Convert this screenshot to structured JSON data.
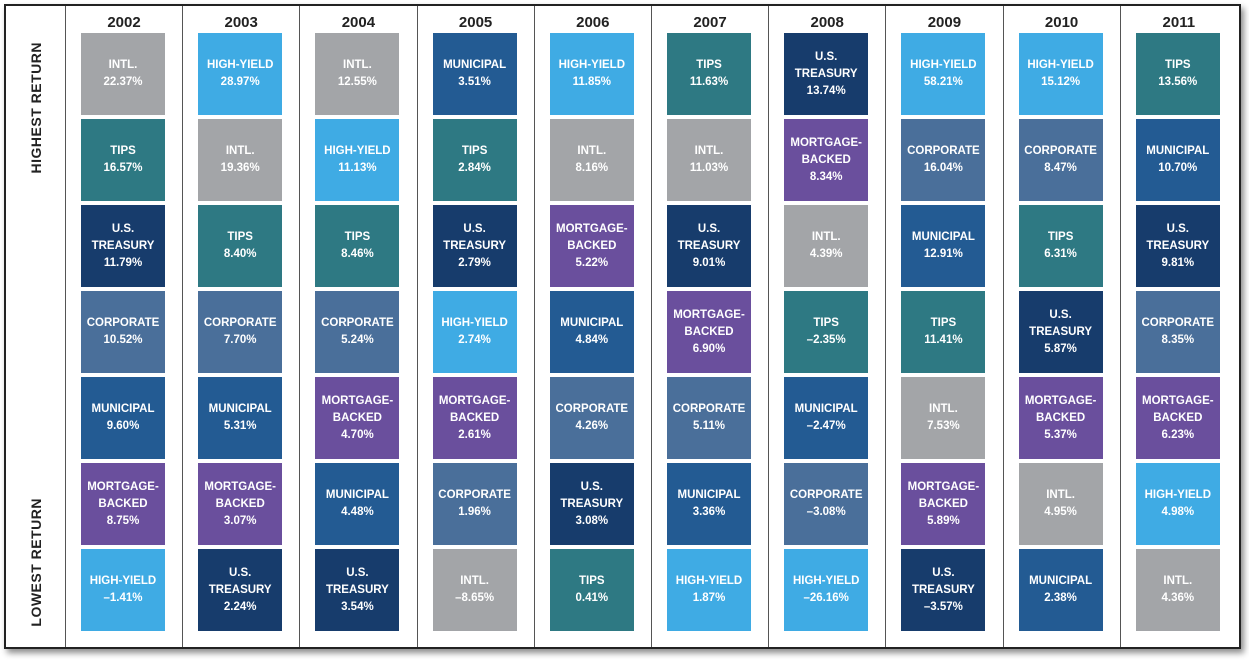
{
  "side_labels": {
    "top": "HIGHEST RETURN",
    "bottom": "LOWEST RETURN"
  },
  "palette": {
    "INTL.": "#a3a5a8",
    "HIGH-YIELD": "#3fabe4",
    "TIPS": "#2e7983",
    "U.S. TREASURY": "#173c6c",
    "CORPORATE": "#4a6f9a",
    "MUNICIPAL": "#235b93",
    "MORTGAGE-BACKED": "#6a4f9d"
  },
  "columns": [
    {
      "year": "2002",
      "cells": [
        {
          "label": "INTL.",
          "value": "22.37%"
        },
        {
          "label": "TIPS",
          "value": "16.57%"
        },
        {
          "label": "U.S. TREASURY",
          "value": "11.79%"
        },
        {
          "label": "CORPORATE",
          "value": "10.52%"
        },
        {
          "label": "MUNICIPAL",
          "value": "9.60%"
        },
        {
          "label": "MORTGAGE-BACKED",
          "value": "8.75%"
        },
        {
          "label": "HIGH-YIELD",
          "value": "–1.41%"
        }
      ]
    },
    {
      "year": "2003",
      "cells": [
        {
          "label": "HIGH-YIELD",
          "value": "28.97%"
        },
        {
          "label": "INTL.",
          "value": "19.36%"
        },
        {
          "label": "TIPS",
          "value": "8.40%"
        },
        {
          "label": "CORPORATE",
          "value": "7.70%"
        },
        {
          "label": "MUNICIPAL",
          "value": "5.31%"
        },
        {
          "label": "MORTGAGE-BACKED",
          "value": "3.07%"
        },
        {
          "label": "U.S. TREASURY",
          "value": "2.24%"
        }
      ]
    },
    {
      "year": "2004",
      "cells": [
        {
          "label": "INTL.",
          "value": "12.55%"
        },
        {
          "label": "HIGH-YIELD",
          "value": "11.13%"
        },
        {
          "label": "TIPS",
          "value": "8.46%"
        },
        {
          "label": "CORPORATE",
          "value": "5.24%"
        },
        {
          "label": "MORTGAGE-BACKED",
          "value": "4.70%"
        },
        {
          "label": "MUNICIPAL",
          "value": "4.48%"
        },
        {
          "label": "U.S. TREASURY",
          "value": "3.54%"
        }
      ]
    },
    {
      "year": "2005",
      "cells": [
        {
          "label": "MUNICIPAL",
          "value": "3.51%"
        },
        {
          "label": "TIPS",
          "value": "2.84%"
        },
        {
          "label": "U.S. TREASURY",
          "value": "2.79%"
        },
        {
          "label": "HIGH-YIELD",
          "value": "2.74%"
        },
        {
          "label": "MORTGAGE-BACKED",
          "value": "2.61%"
        },
        {
          "label": "CORPORATE",
          "value": "1.96%"
        },
        {
          "label": "INTL.",
          "value": "–8.65%"
        }
      ]
    },
    {
      "year": "2006",
      "cells": [
        {
          "label": "HIGH-YIELD",
          "value": "11.85%"
        },
        {
          "label": "INTL.",
          "value": "8.16%"
        },
        {
          "label": "MORTGAGE-BACKED",
          "value": "5.22%"
        },
        {
          "label": "MUNICIPAL",
          "value": "4.84%"
        },
        {
          "label": "CORPORATE",
          "value": "4.26%"
        },
        {
          "label": "U.S. TREASURY",
          "value": "3.08%"
        },
        {
          "label": "TIPS",
          "value": "0.41%"
        }
      ]
    },
    {
      "year": "2007",
      "cells": [
        {
          "label": "TIPS",
          "value": "11.63%"
        },
        {
          "label": "INTL.",
          "value": "11.03%"
        },
        {
          "label": "U.S. TREASURY",
          "value": "9.01%"
        },
        {
          "label": "MORTGAGE-BACKED",
          "value": "6.90%"
        },
        {
          "label": "CORPORATE",
          "value": "5.11%"
        },
        {
          "label": "MUNICIPAL",
          "value": "3.36%"
        },
        {
          "label": "HIGH-YIELD",
          "value": "1.87%"
        }
      ]
    },
    {
      "year": "2008",
      "cells": [
        {
          "label": "U.S. TREASURY",
          "value": "13.74%"
        },
        {
          "label": "MORTGAGE-BACKED",
          "value": "8.34%"
        },
        {
          "label": "INTL.",
          "value": "4.39%"
        },
        {
          "label": "TIPS",
          "value": "–2.35%"
        },
        {
          "label": "MUNICIPAL",
          "value": "–2.47%"
        },
        {
          "label": "CORPORATE",
          "value": "–3.08%"
        },
        {
          "label": "HIGH-YIELD",
          "value": "–26.16%"
        }
      ]
    },
    {
      "year": "2009",
      "cells": [
        {
          "label": "HIGH-YIELD",
          "value": "58.21%"
        },
        {
          "label": "CORPORATE",
          "value": "16.04%"
        },
        {
          "label": "MUNICIPAL",
          "value": "12.91%"
        },
        {
          "label": "TIPS",
          "value": "11.41%"
        },
        {
          "label": "INTL.",
          "value": "7.53%"
        },
        {
          "label": "MORTGAGE-BACKED",
          "value": "5.89%"
        },
        {
          "label": "U.S. TREASURY",
          "value": "–3.57%"
        }
      ]
    },
    {
      "year": "2010",
      "cells": [
        {
          "label": "HIGH-YIELD",
          "value": "15.12%"
        },
        {
          "label": "CORPORATE",
          "value": "8.47%"
        },
        {
          "label": "TIPS",
          "value": "6.31%"
        },
        {
          "label": "U.S. TREASURY",
          "value": "5.87%"
        },
        {
          "label": "MORTGAGE-BACKED",
          "value": "5.37%"
        },
        {
          "label": "INTL.",
          "value": "4.95%"
        },
        {
          "label": "MUNICIPAL",
          "value": "2.38%"
        }
      ]
    },
    {
      "year": "2011",
      "cells": [
        {
          "label": "TIPS",
          "value": "13.56%"
        },
        {
          "label": "MUNICIPAL",
          "value": "10.70%"
        },
        {
          "label": "U.S. TREASURY",
          "value": "9.81%"
        },
        {
          "label": "CORPORATE",
          "value": "8.35%"
        },
        {
          "label": "MORTGAGE-BACKED",
          "value": "6.23%"
        },
        {
          "label": "HIGH-YIELD",
          "value": "4.98%"
        },
        {
          "label": "INTL.",
          "value": "4.36%"
        }
      ]
    }
  ]
}
